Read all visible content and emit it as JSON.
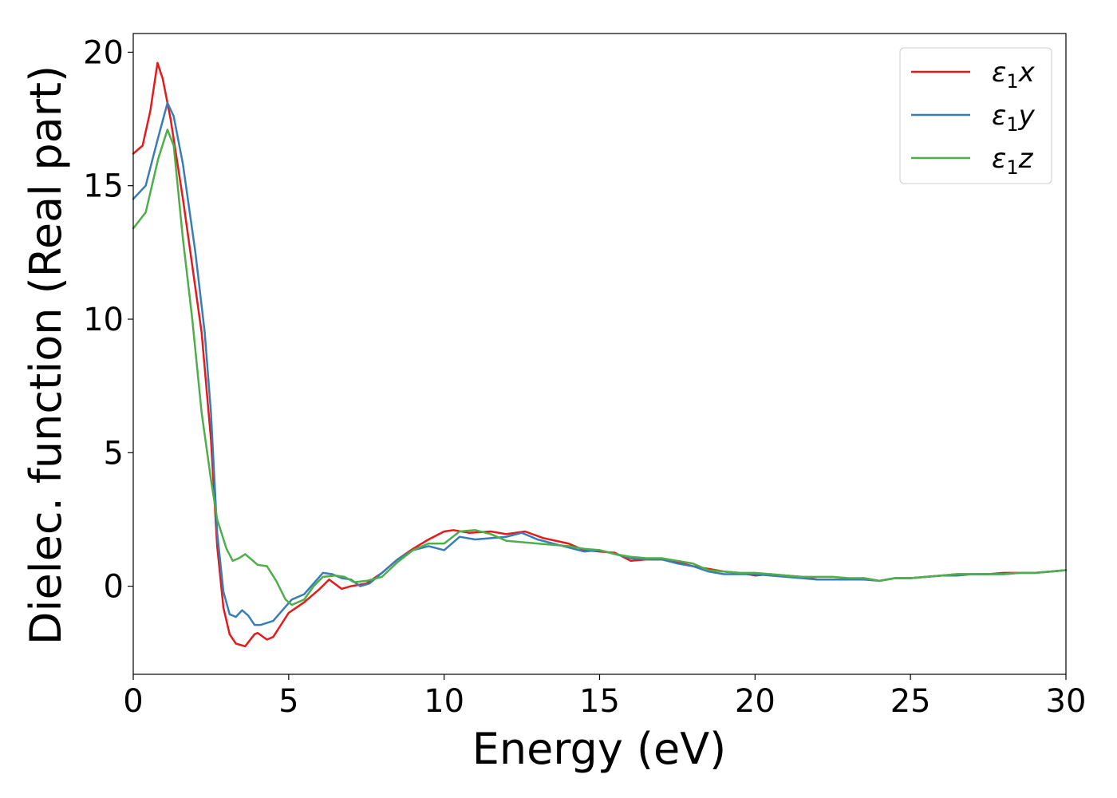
{
  "chart_data": {
    "type": "line",
    "title": "",
    "xlabel": "Energy (eV)",
    "ylabel": "Dielec. function (Real part)",
    "xlim": [
      0,
      30
    ],
    "ylim": [
      -3.3,
      20.7
    ],
    "xticks": [
      0,
      5,
      10,
      15,
      20,
      25,
      30
    ],
    "yticks": [
      0,
      5,
      10,
      15,
      20
    ],
    "xtick_labels": [
      "0",
      "5",
      "10",
      "15",
      "20",
      "25",
      "30"
    ],
    "ytick_labels": [
      "0",
      "5",
      "10",
      "15",
      "20"
    ],
    "grid": false,
    "legend_position": "top-right",
    "series": [
      {
        "name": "ε1x",
        "legend_base": "ε",
        "legend_sub": "1",
        "legend_tail": "x",
        "color": "#e41a1c",
        "points": [
          [
            0,
            16.2
          ],
          [
            0.3,
            16.5
          ],
          [
            0.55,
            17.8
          ],
          [
            0.78,
            19.6
          ],
          [
            0.95,
            19.0
          ],
          [
            1.2,
            17.5
          ],
          [
            1.6,
            14.5
          ],
          [
            1.9,
            12.0
          ],
          [
            2.2,
            9.5
          ],
          [
            2.5,
            5.5
          ],
          [
            2.7,
            1.5
          ],
          [
            2.9,
            -0.8
          ],
          [
            3.1,
            -1.8
          ],
          [
            3.3,
            -2.15
          ],
          [
            3.6,
            -2.25
          ],
          [
            3.9,
            -1.8
          ],
          [
            4.0,
            -1.75
          ],
          [
            4.3,
            -2.0
          ],
          [
            4.5,
            -1.9
          ],
          [
            5.0,
            -1.0
          ],
          [
            5.5,
            -0.6
          ],
          [
            6.0,
            -0.1
          ],
          [
            6.3,
            0.25
          ],
          [
            6.7,
            -0.1
          ],
          [
            7.0,
            0.0
          ],
          [
            7.5,
            0.1
          ],
          [
            8.0,
            0.5
          ],
          [
            8.5,
            1.0
          ],
          [
            9.0,
            1.4
          ],
          [
            9.5,
            1.75
          ],
          [
            10.0,
            2.05
          ],
          [
            10.3,
            2.1
          ],
          [
            10.8,
            2.0
          ],
          [
            11.5,
            2.05
          ],
          [
            12.0,
            1.95
          ],
          [
            12.6,
            2.05
          ],
          [
            13.2,
            1.8
          ],
          [
            14.0,
            1.6
          ],
          [
            14.5,
            1.35
          ],
          [
            15.0,
            1.3
          ],
          [
            15.5,
            1.25
          ],
          [
            16.0,
            0.95
          ],
          [
            16.5,
            1.0
          ],
          [
            17.0,
            1.0
          ],
          [
            17.5,
            0.9
          ],
          [
            18.0,
            0.75
          ],
          [
            18.5,
            0.65
          ],
          [
            19.0,
            0.55
          ],
          [
            19.5,
            0.5
          ],
          [
            20.0,
            0.4
          ],
          [
            20.5,
            0.45
          ],
          [
            21.0,
            0.4
          ],
          [
            21.5,
            0.35
          ],
          [
            22.0,
            0.25
          ],
          [
            22.5,
            0.25
          ],
          [
            23.0,
            0.25
          ],
          [
            23.5,
            0.3
          ],
          [
            24.0,
            0.2
          ],
          [
            24.5,
            0.3
          ],
          [
            25.0,
            0.3
          ],
          [
            25.5,
            0.35
          ],
          [
            26.0,
            0.4
          ],
          [
            26.5,
            0.45
          ],
          [
            27.0,
            0.45
          ],
          [
            27.5,
            0.45
          ],
          [
            28.0,
            0.5
          ],
          [
            28.5,
            0.5
          ],
          [
            29.0,
            0.5
          ],
          [
            29.5,
            0.55
          ],
          [
            30.0,
            0.6
          ]
        ]
      },
      {
        "name": "ε1y",
        "legend_base": "ε",
        "legend_sub": "1",
        "legend_tail": "y",
        "color": "#377eb8",
        "points": [
          [
            0,
            14.5
          ],
          [
            0.4,
            15.0
          ],
          [
            0.8,
            16.8
          ],
          [
            1.1,
            18.1
          ],
          [
            1.3,
            17.6
          ],
          [
            1.6,
            15.8
          ],
          [
            2.0,
            12.5
          ],
          [
            2.3,
            9.5
          ],
          [
            2.5,
            6.5
          ],
          [
            2.7,
            2.0
          ],
          [
            2.9,
            -0.2
          ],
          [
            3.1,
            -1.05
          ],
          [
            3.3,
            -1.15
          ],
          [
            3.5,
            -0.9
          ],
          [
            3.7,
            -1.1
          ],
          [
            3.9,
            -1.45
          ],
          [
            4.1,
            -1.45
          ],
          [
            4.5,
            -1.3
          ],
          [
            4.8,
            -0.9
          ],
          [
            5.1,
            -0.5
          ],
          [
            5.5,
            -0.3
          ],
          [
            5.8,
            0.1
          ],
          [
            6.1,
            0.5
          ],
          [
            6.4,
            0.45
          ],
          [
            6.7,
            0.3
          ],
          [
            7.0,
            0.25
          ],
          [
            7.3,
            0.0
          ],
          [
            7.6,
            0.1
          ],
          [
            8.0,
            0.5
          ],
          [
            8.5,
            1.0
          ],
          [
            9.0,
            1.35
          ],
          [
            9.5,
            1.5
          ],
          [
            10.0,
            1.35
          ],
          [
            10.5,
            1.85
          ],
          [
            11.0,
            1.75
          ],
          [
            11.5,
            1.8
          ],
          [
            12.0,
            1.85
          ],
          [
            12.5,
            2.0
          ],
          [
            13.0,
            1.75
          ],
          [
            13.5,
            1.6
          ],
          [
            14.0,
            1.45
          ],
          [
            14.5,
            1.3
          ],
          [
            15.0,
            1.35
          ],
          [
            15.5,
            1.2
          ],
          [
            16.0,
            1.05
          ],
          [
            16.5,
            1.0
          ],
          [
            17.0,
            1.0
          ],
          [
            17.5,
            0.85
          ],
          [
            18.0,
            0.75
          ],
          [
            18.5,
            0.55
          ],
          [
            19.0,
            0.45
          ],
          [
            19.5,
            0.45
          ],
          [
            20.0,
            0.45
          ],
          [
            20.5,
            0.4
          ],
          [
            21.0,
            0.35
          ],
          [
            21.5,
            0.3
          ],
          [
            22.0,
            0.25
          ],
          [
            22.5,
            0.25
          ],
          [
            23.0,
            0.25
          ],
          [
            23.5,
            0.25
          ],
          [
            24.0,
            0.2
          ],
          [
            24.5,
            0.3
          ],
          [
            25.0,
            0.3
          ],
          [
            25.5,
            0.35
          ],
          [
            26.0,
            0.4
          ],
          [
            26.5,
            0.4
          ],
          [
            27.0,
            0.45
          ],
          [
            27.5,
            0.45
          ],
          [
            28.0,
            0.45
          ],
          [
            28.5,
            0.5
          ],
          [
            29.0,
            0.5
          ],
          [
            29.5,
            0.55
          ],
          [
            30.0,
            0.6
          ]
        ]
      },
      {
        "name": "ε1z",
        "legend_base": "ε",
        "legend_sub": "1",
        "legend_tail": "z",
        "color": "#4daf4a",
        "points": [
          [
            0,
            13.4
          ],
          [
            0.4,
            14.0
          ],
          [
            0.8,
            16.0
          ],
          [
            1.1,
            17.1
          ],
          [
            1.3,
            16.5
          ],
          [
            1.6,
            13.0
          ],
          [
            1.9,
            10.0
          ],
          [
            2.2,
            6.5
          ],
          [
            2.5,
            4.0
          ],
          [
            2.7,
            2.5
          ],
          [
            3.0,
            1.4
          ],
          [
            3.2,
            0.95
          ],
          [
            3.4,
            1.05
          ],
          [
            3.6,
            1.2
          ],
          [
            3.8,
            1.0
          ],
          [
            4.0,
            0.8
          ],
          [
            4.3,
            0.75
          ],
          [
            4.6,
            0.2
          ],
          [
            4.9,
            -0.5
          ],
          [
            5.1,
            -0.7
          ],
          [
            5.5,
            -0.5
          ],
          [
            5.8,
            0.0
          ],
          [
            6.1,
            0.35
          ],
          [
            6.5,
            0.4
          ],
          [
            6.8,
            0.35
          ],
          [
            7.1,
            0.15
          ],
          [
            7.5,
            0.2
          ],
          [
            8.0,
            0.35
          ],
          [
            8.5,
            0.9
          ],
          [
            9.0,
            1.35
          ],
          [
            9.5,
            1.6
          ],
          [
            10.0,
            1.6
          ],
          [
            10.5,
            2.05
          ],
          [
            11.0,
            2.1
          ],
          [
            11.5,
            1.95
          ],
          [
            12.0,
            1.7
          ],
          [
            12.5,
            1.65
          ],
          [
            13.0,
            1.6
          ],
          [
            13.5,
            1.55
          ],
          [
            14.0,
            1.5
          ],
          [
            14.5,
            1.4
          ],
          [
            15.0,
            1.35
          ],
          [
            15.5,
            1.2
          ],
          [
            16.0,
            1.1
          ],
          [
            16.5,
            1.05
          ],
          [
            17.0,
            1.05
          ],
          [
            17.5,
            0.95
          ],
          [
            18.0,
            0.85
          ],
          [
            18.5,
            0.6
          ],
          [
            19.0,
            0.55
          ],
          [
            19.5,
            0.5
          ],
          [
            20.0,
            0.5
          ],
          [
            20.5,
            0.45
          ],
          [
            21.0,
            0.4
          ],
          [
            21.5,
            0.35
          ],
          [
            22.0,
            0.35
          ],
          [
            22.5,
            0.35
          ],
          [
            23.0,
            0.3
          ],
          [
            23.5,
            0.3
          ],
          [
            24.0,
            0.2
          ],
          [
            24.5,
            0.3
          ],
          [
            25.0,
            0.3
          ],
          [
            25.5,
            0.35
          ],
          [
            26.0,
            0.4
          ],
          [
            26.5,
            0.45
          ],
          [
            27.0,
            0.45
          ],
          [
            27.5,
            0.45
          ],
          [
            28.0,
            0.45
          ],
          [
            28.5,
            0.5
          ],
          [
            29.0,
            0.5
          ],
          [
            29.5,
            0.55
          ],
          [
            30.0,
            0.6
          ]
        ]
      }
    ]
  }
}
